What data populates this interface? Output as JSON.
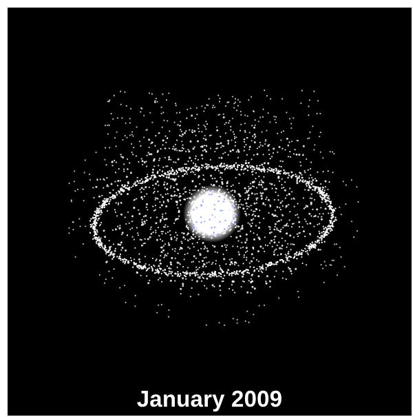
{
  "image": {
    "caption": "January 2009",
    "background_color": "#000000",
    "frame_color": "#ffffff",
    "dot_color": "#ffffff",
    "core_color": "#ffffff",
    "core_tint_color": "#9aa6ff"
  }
}
